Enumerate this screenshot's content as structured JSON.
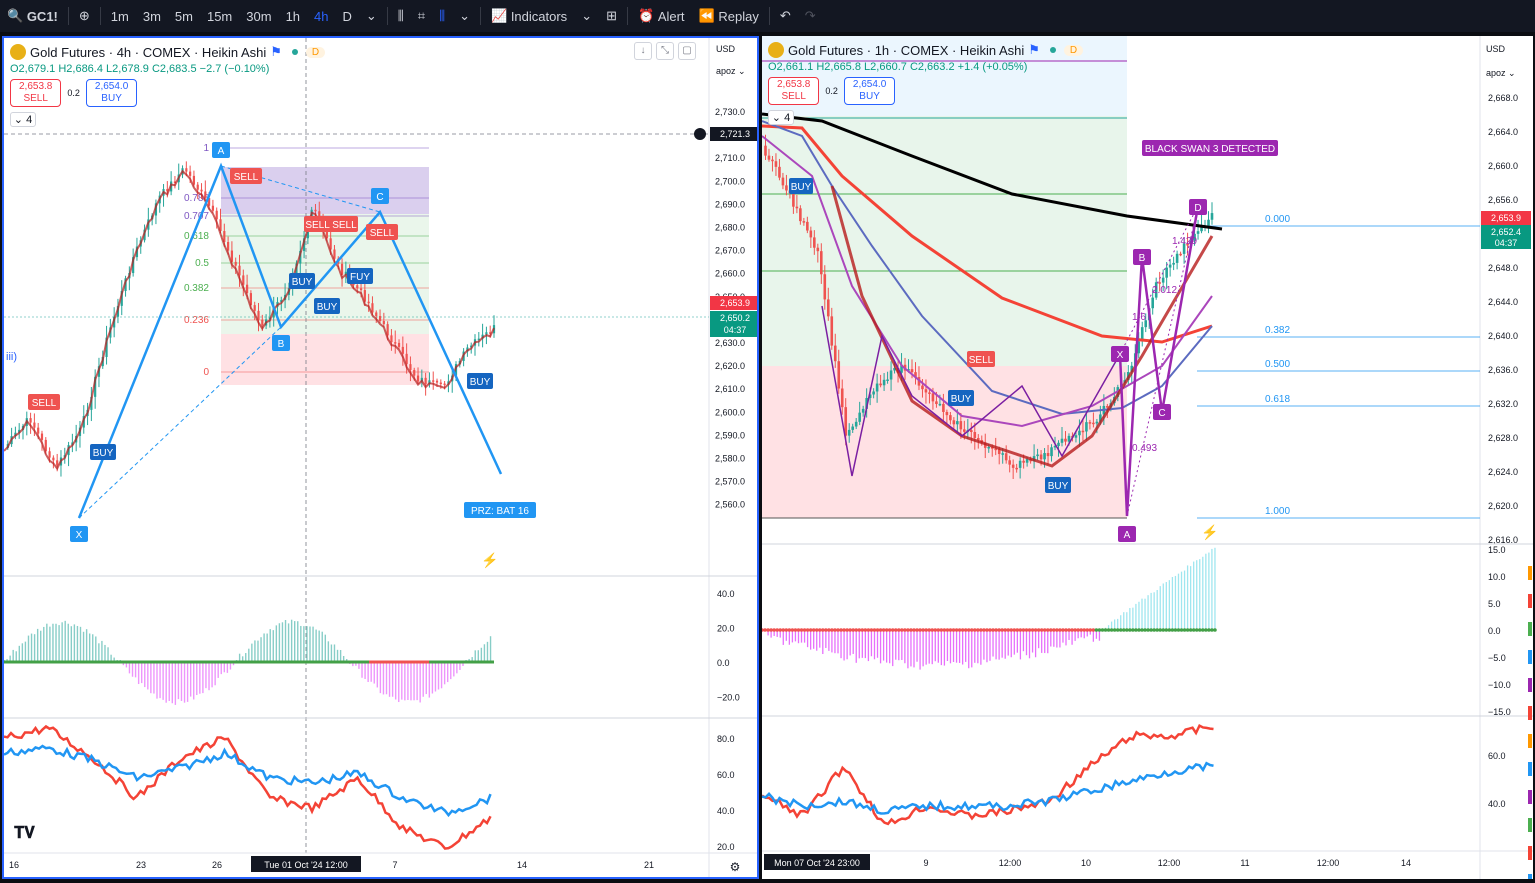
{
  "topbar": {
    "symbol": "GC1!",
    "intervals": [
      "1m",
      "3m",
      "5m",
      "15m",
      "30m",
      "1h",
      "4h",
      "D"
    ],
    "active_interval": "4h",
    "indicators": "Indicators",
    "alert": "Alert",
    "replay": "Replay"
  },
  "left": {
    "title": "Gold Futures · 4h · COMEX · Heikin Ashi",
    "pill": "D",
    "ohlc": {
      "o": "O2,679.1",
      "h": "H2,686.4",
      "l": "L2,678.9",
      "c": "C2,683.5",
      "chg": "−2.7 (−0.10%)"
    },
    "sell_price": "2,653.8",
    "sell_label": "SELL",
    "spread": "0.2",
    "buy_price": "2,654.0",
    "buy_label": "BUY",
    "layer": "4",
    "currency": "USD",
    "scale": "apoz",
    "price_ticks": [
      "2,730.0",
      "2,720.0",
      "2,710.0",
      "2,700.0",
      "2,690.0",
      "2,680.0",
      "2,670.0",
      "2,660.0",
      "2,650.0",
      "2,640.0",
      "2,630.0",
      "2,620.0",
      "2,610.0",
      "2,600.0",
      "2,590.0",
      "2,580.0",
      "2,570.0",
      "2,560.0"
    ],
    "crosshair_price": "2,721.3",
    "last_price": "2,653.9",
    "current_price": "2,650.2",
    "countdown": "04:37",
    "fib_levels": [
      "1",
      "0.786",
      "0.707",
      "0.618",
      "0.5",
      "0.382",
      "0.236",
      "0"
    ],
    "pattern_labels": [
      "X",
      "A",
      "B",
      "C"
    ],
    "prz": "PRZ: BAT 16",
    "signals": {
      "sell": "SELL",
      "buy": "BUY",
      "sellsell": "SELL SELL",
      "fuy": "FUY"
    },
    "wave": "iii)",
    "macd_ticks": [
      "40.0",
      "20.0",
      "0.0",
      "−20.0"
    ],
    "rsi_ticks": [
      "80.0",
      "60.0",
      "40.0",
      "20.0"
    ],
    "time_ticks": [
      "16",
      "23",
      "26",
      "7",
      "14",
      "21"
    ],
    "time_cross": "Tue 01 Oct '24   12:00"
  },
  "right": {
    "title": "Gold Futures · 1h · COMEX · Heikin Ashi",
    "pill": "D",
    "ohlc": {
      "o": "O2,661.1",
      "h": "H2,665.8",
      "l": "L2,660.7",
      "c": "C2,663.2",
      "chg": "+1.4 (+0.05%)"
    },
    "sell_price": "2,653.8",
    "sell_label": "SELL",
    "spread": "0.2",
    "buy_price": "2,654.0",
    "buy_label": "BUY",
    "layer": "4",
    "currency": "USD",
    "scale": "apoz",
    "price_ticks": [
      "2,668.0",
      "2,664.0",
      "2,660.0",
      "2,656.0",
      "2,652.0",
      "2,648.0",
      "2,644.0",
      "2,640.0",
      "2,636.0",
      "2,632.0",
      "2,628.0",
      "2,624.0",
      "2,620.0",
      "2,616.0"
    ],
    "last_price": "2,653.9",
    "current_price": "2,652.4",
    "countdown": "04:37",
    "black_swan": "BLACK SWAN 3 DETECTED",
    "fib_levels": [
      "0.000",
      "0.382",
      "0.500",
      "0.618",
      "1.000"
    ],
    "pattern_labels": [
      "X",
      "A",
      "B",
      "C",
      "D"
    ],
    "ratios": [
      "1.429",
      "2.012",
      "1.6",
      "0.493"
    ],
    "signals": {
      "buy": "BUY",
      "sell": "SELL"
    },
    "macd_ticks": [
      "15.0",
      "10.0",
      "5.0",
      "0.0",
      "−5.0",
      "−10.0",
      "−15.0"
    ],
    "rsi_ticks": [
      "60.0",
      "40.0"
    ],
    "time_ticks": [
      "9",
      "12:00",
      "10",
      "12:00",
      "11",
      "12:00",
      "14"
    ],
    "time_cross": "Mon 07 Oct '24   23:00"
  },
  "colors": {
    "up": "#26a69a",
    "down": "#ef5350",
    "accent": "#2962ff",
    "pattern_left": "#2196f3",
    "pattern_right": "#9c27b0"
  }
}
